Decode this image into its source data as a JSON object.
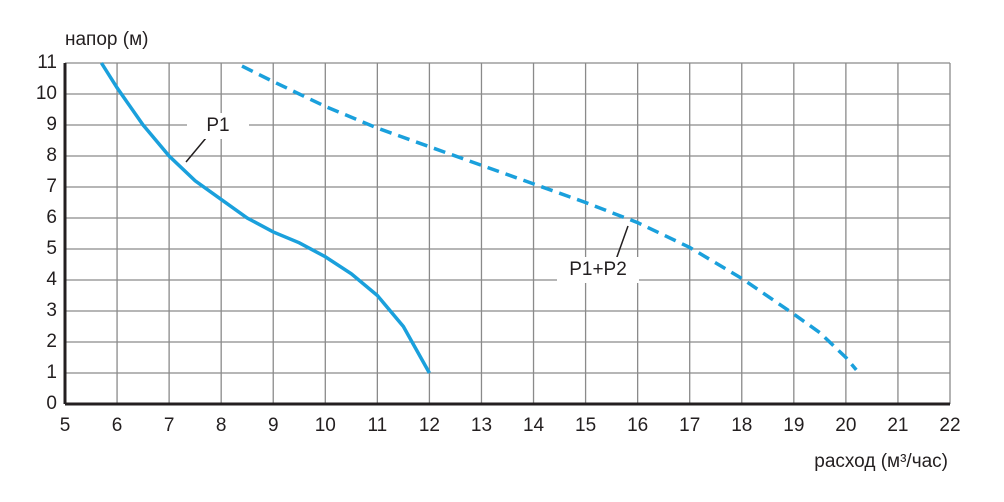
{
  "chart_data": {
    "type": "line",
    "x_label": "расход (м³/час)",
    "y_label": "напор (м)",
    "xlim": [
      5,
      22
    ],
    "xticks": [
      5,
      6,
      7,
      8,
      9,
      10,
      11,
      12,
      13,
      14,
      15,
      16,
      17,
      18,
      19,
      20,
      21,
      22
    ],
    "ylim": [
      0,
      11
    ],
    "yticks": [
      0,
      1,
      2,
      3,
      4,
      5,
      6,
      7,
      8,
      9,
      10,
      11
    ],
    "grid": true,
    "series": [
      {
        "name": "P1",
        "color": "#1aa0dc",
        "dashed": false,
        "x": [
          5.7,
          6,
          6.5,
          7,
          7.5,
          8,
          8.5,
          9,
          9.5,
          10,
          10.5,
          11,
          11.5,
          12
        ],
        "values": [
          11,
          10.2,
          9,
          8,
          7.2,
          6.6,
          6,
          5.55,
          5.2,
          4.75,
          4.2,
          3.5,
          2.5,
          1
        ]
      },
      {
        "name": "P1+P2",
        "color": "#1aa0dc",
        "dashed": true,
        "x": [
          8.4,
          9,
          10,
          11,
          12,
          13,
          14,
          15,
          16,
          17,
          18,
          19,
          19.5,
          20,
          20.2
        ],
        "values": [
          10.9,
          10.4,
          9.6,
          8.9,
          8.3,
          7.7,
          7.1,
          6.5,
          5.85,
          5.05,
          4.05,
          2.9,
          2.3,
          1.5,
          1.1
        ]
      }
    ]
  }
}
